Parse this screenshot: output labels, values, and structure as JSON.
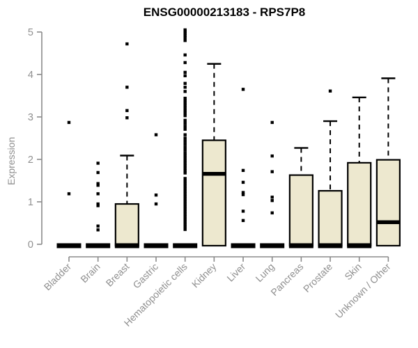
{
  "chart_data": {
    "type": "boxplot",
    "title": "ENSG00000213183 - RPS7P8",
    "ylabel": "Expression",
    "xlabel": "",
    "ylim": [
      0,
      5
    ],
    "yticks": [
      0,
      1,
      2,
      3,
      4,
      5
    ],
    "grid": false,
    "legend": "none",
    "categories": [
      "Bladder",
      "Brain",
      "Breast",
      "Gastric",
      "Hematopoietic cells",
      "Kidney",
      "Liver",
      "Lung",
      "Pancreas",
      "Prostate",
      "Skin",
      "Unknown / Other"
    ],
    "boxes": [
      {
        "label": "Bladder",
        "q1": 0,
        "median": 0,
        "q3": 0,
        "whisker_low": 0,
        "whisker_high": 0,
        "outliers": [
          2.87,
          1.19
        ]
      },
      {
        "label": "Brain",
        "q1": 0,
        "median": 0,
        "q3": 0,
        "whisker_low": 0,
        "whisker_high": 0,
        "outliers": [
          1.91,
          1.69,
          1.43,
          1.39,
          1.19,
          0.95,
          0.91,
          0.43,
          0.34
        ]
      },
      {
        "label": "Breast",
        "q1": 0,
        "median": 0,
        "q3": 0.95,
        "whisker_low": 0,
        "whisker_high": 2.09,
        "outliers": [
          4.72,
          3.7,
          3.15,
          2.98
        ]
      },
      {
        "label": "Gastric",
        "q1": 0,
        "median": 0,
        "q3": 0,
        "whisker_low": 0,
        "whisker_high": 0,
        "outliers": [
          2.58,
          1.16,
          0.95
        ]
      },
      {
        "label": "Hematopoietic cells",
        "q1": 0,
        "median": 0,
        "q3": 0,
        "whisker_low": 0,
        "whisker_high": 0,
        "outliers": [
          5.05,
          5.01,
          4.97,
          4.92,
          4.87,
          4.8,
          4.46,
          4.28,
          4.05,
          3.97,
          3.79,
          3.7,
          3.6,
          3.44,
          3.39,
          3.33,
          3.27,
          3.21,
          3.15,
          3.09,
          3.03,
          2.92,
          2.85,
          2.78,
          2.71,
          2.58,
          2.5,
          2.43,
          2.36,
          2.29,
          2.22,
          2.15,
          2.09,
          2.03,
          1.97,
          1.91,
          1.85,
          1.79,
          1.73,
          1.68,
          1.55,
          1.49,
          1.43,
          1.37,
          1.31,
          1.25,
          1.19,
          1.13,
          1.07,
          1.01,
          0.95,
          0.89,
          0.83,
          0.77,
          0.71,
          0.65,
          0.59,
          0.53,
          0.47,
          0.41,
          0.35
        ]
      },
      {
        "label": "Kidney",
        "q1": 0,
        "median": 1.66,
        "q3": 2.45,
        "whisker_low": 0,
        "whisker_high": 4.25,
        "outliers": []
      },
      {
        "label": "Liver",
        "q1": 0,
        "median": 0,
        "q3": 0,
        "whisker_low": 0,
        "whisker_high": 0,
        "outliers": [
          3.65,
          1.74,
          1.46,
          1.22,
          1.17,
          0.78,
          0.56
        ]
      },
      {
        "label": "Lung",
        "q1": 0,
        "median": 0,
        "q3": 0,
        "whisker_low": 0,
        "whisker_high": 0,
        "outliers": [
          2.87,
          2.08,
          1.71,
          1.11,
          1.03,
          0.74
        ]
      },
      {
        "label": "Pancreas",
        "q1": 0,
        "median": 0,
        "q3": 1.63,
        "whisker_low": 0,
        "whisker_high": 2.27,
        "outliers": []
      },
      {
        "label": "Prostate",
        "q1": 0,
        "median": 0,
        "q3": 1.26,
        "whisker_low": 0,
        "whisker_high": 2.9,
        "outliers": [
          3.61
        ]
      },
      {
        "label": "Skin",
        "q1": 0,
        "median": 0,
        "q3": 1.92,
        "whisker_low": 0,
        "whisker_high": 3.46,
        "outliers": []
      },
      {
        "label": "Unknown / Other",
        "q1": 0,
        "median": 0.52,
        "q3": 1.99,
        "whisker_low": 0,
        "whisker_high": 3.91,
        "outliers": []
      }
    ],
    "point_glyph": "filled-square",
    "colors": {
      "box_fill": "#EDE8CF",
      "box_border": "#000000",
      "median": "#000000",
      "whisker": "#000000",
      "outlier": "#000000",
      "axis_line": "#8A8A8A",
      "tick_text": "#8F8F8F",
      "title_text": "#000000",
      "background": "#FFFFFF"
    }
  }
}
